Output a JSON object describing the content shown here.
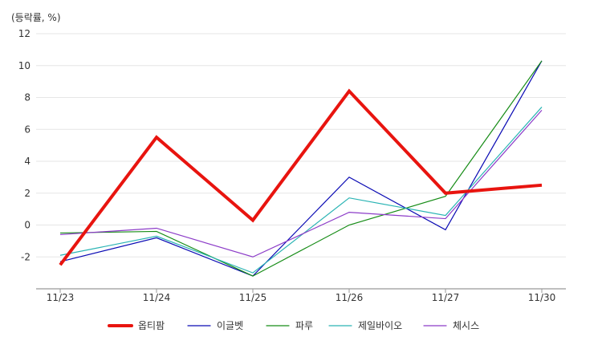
{
  "chart_data": {
    "type": "line",
    "ylabel": "(등락률, %)",
    "categories": [
      "11/23",
      "11/24",
      "11/25",
      "11/26",
      "11/27",
      "11/30"
    ],
    "ylim": [
      -4,
      12
    ],
    "yticks": [
      -2,
      0,
      2,
      4,
      6,
      8,
      10,
      12
    ],
    "grid": true,
    "legend_position": "bottom",
    "series": [
      {
        "name": "옵티팜",
        "color": "#e8140f",
        "width": 4,
        "values": [
          -2.5,
          5.5,
          0.3,
          8.4,
          2.0,
          2.5
        ]
      },
      {
        "name": "이글벳",
        "color": "#0a0ab4",
        "width": 1.2,
        "values": [
          -2.3,
          -0.8,
          -3.2,
          3.0,
          -0.3,
          10.3
        ]
      },
      {
        "name": "파루",
        "color": "#168c16",
        "width": 1.2,
        "values": [
          -0.5,
          -0.4,
          -3.2,
          0.0,
          1.8,
          10.3
        ]
      },
      {
        "name": "제일바이오",
        "color": "#2ab4b4",
        "width": 1.2,
        "values": [
          -1.9,
          -0.7,
          -3.0,
          1.7,
          0.6,
          7.4
        ]
      },
      {
        "name": "체시스",
        "color": "#8c3cc8",
        "width": 1.2,
        "values": [
          -0.6,
          -0.2,
          -2.0,
          0.8,
          0.4,
          7.2
        ]
      }
    ]
  }
}
